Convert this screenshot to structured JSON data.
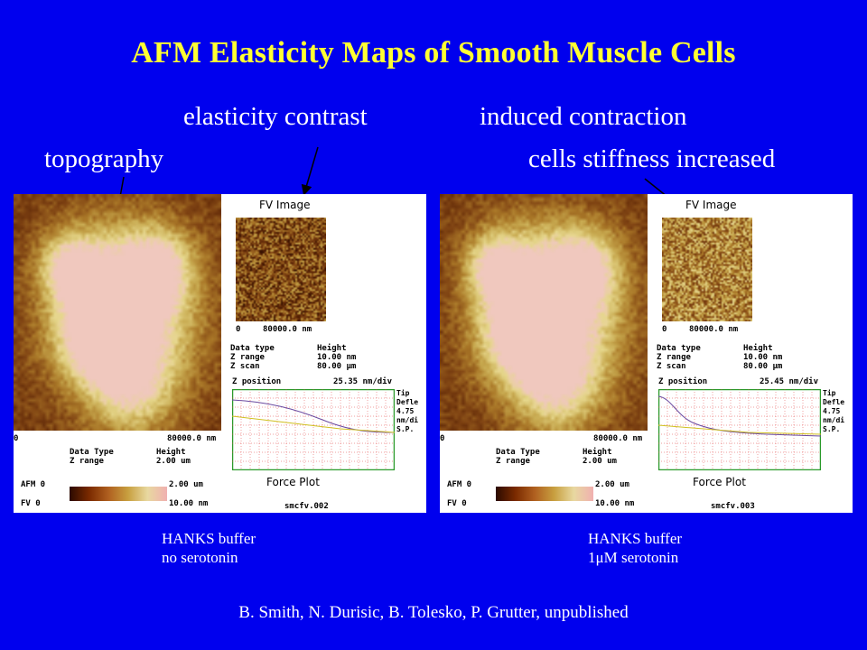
{
  "slide": {
    "title": "AFM Elasticity Maps of Smooth Muscle Cells",
    "annotations": {
      "elasticity_contrast": "elasticity contrast",
      "induced_contraction": "induced contraction",
      "topography": "topography",
      "cells_stiffness": "cells stiffness increased"
    },
    "captions": {
      "left_line1": "HANKS buffer",
      "left_line2": "no serotonin",
      "right_line1": "HANKS buffer",
      "right_line2": "1μM serotonin"
    },
    "credit": "B. Smith, N. Durisic, B. Tolesko, P. Grutter, unpublished"
  },
  "panels": [
    {
      "fv_label": "FV  Image",
      "fv_axis_start": "0",
      "fv_axis_end": "80000.0 nm",
      "fv_data_labels": "Data type\nZ range\nZ scan",
      "fv_data_values": "Height\n10.00 nm\n80.00 μm",
      "z_position": "Z position",
      "force_scale": "25.35 nm/div",
      "tip_info": "Tip\nDefle\n4.75\nnm/di\nS.P.",
      "afm_axis_start": "0",
      "afm_axis_end": "80000.0 nm",
      "afm_data_labels": "Data Type\nZ range",
      "afm_data_values": "Height\n2.00 um",
      "force_label": "Force Plot",
      "cbar_afm": "AFM 0",
      "cbar_afm_max": "2.00 um",
      "cbar_fv": "FV 0",
      "cbar_fv_max": "10.00 nm",
      "file_name": "smcfv.002"
    },
    {
      "fv_label": "FV  Image",
      "fv_axis_start": "0",
      "fv_axis_end": "80000.0 nm",
      "fv_data_labels": "Data type\nZ range\nZ scan",
      "fv_data_values": "Height\n10.00 nm\n80.00 μm",
      "z_position": "Z position",
      "force_scale": "25.45 nm/div",
      "tip_info": "Tip\nDefle\n4.75\nnm/di\nS.P.",
      "afm_axis_start": "0",
      "afm_axis_end": "80000.0 nm",
      "afm_data_labels": "Data Type\nZ range",
      "afm_data_values": "Height\n2.00 um",
      "force_label": "Force Plot",
      "cbar_afm": "AFM 0",
      "cbar_afm_max": "2.00 um",
      "cbar_fv": "FV 0",
      "cbar_fv_max": "10.00 nm",
      "file_name": "smcfv.003"
    }
  ]
}
